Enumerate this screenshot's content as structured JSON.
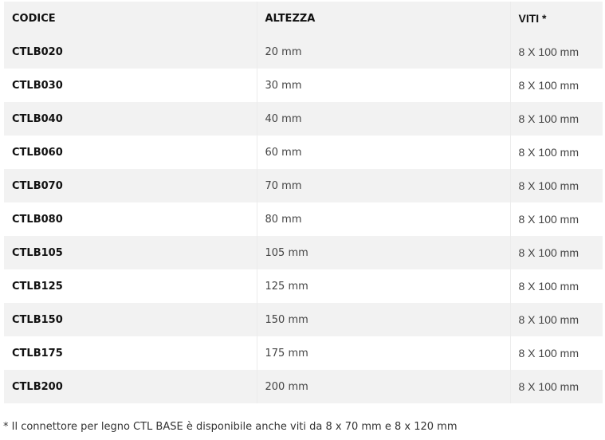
{
  "headers": [
    "CODICE",
    "ALTEZZA",
    "VITI *"
  ],
  "rows": [
    [
      "CTLB020",
      "20 mm",
      "8 X 100 mm"
    ],
    [
      "CTLB030",
      "30 mm",
      "8 X 100 mm"
    ],
    [
      "CTLB040",
      "40 mm",
      "8 X 100 mm"
    ],
    [
      "CTLB060",
      "60 mm",
      "8 X 100 mm"
    ],
    [
      "CTLB070",
      "70 mm",
      "8 X 100 mm"
    ],
    [
      "CTLB080",
      "80 mm",
      "8 X 100 mm"
    ],
    [
      "CTLB105",
      "105 mm",
      "8 X 100 mm"
    ],
    [
      "CTLB125",
      "125 mm",
      "8 X 100 mm"
    ],
    [
      "CTLB150",
      "150 mm",
      "8 X 100 mm"
    ],
    [
      "CTLB175",
      "175 mm",
      "8 X 100 mm"
    ],
    [
      "CTLB200",
      "200 mm",
      "8 X 100 mm"
    ]
  ],
  "footnote": "* Il connettore per legno CTL BASE è disponibile anche viti da 8 x 70 mm e 8 x 120 mm"
}
